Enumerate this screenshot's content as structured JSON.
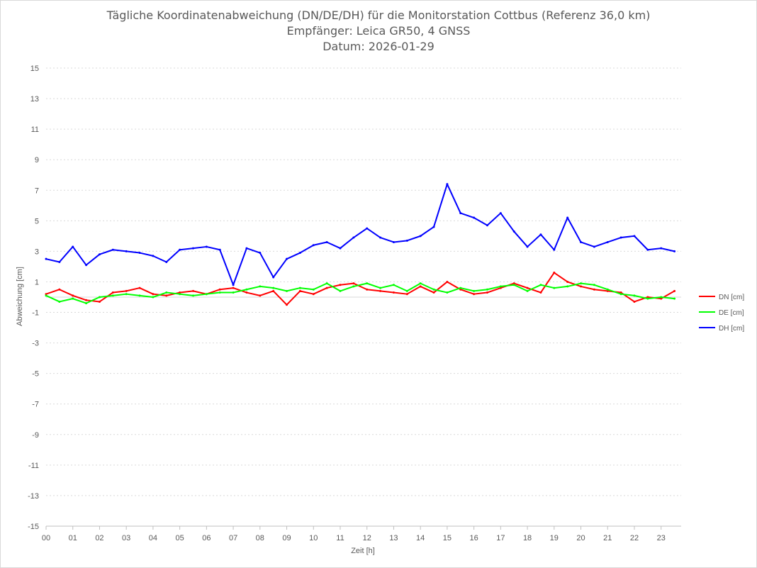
{
  "chart_data": {
    "type": "line",
    "title": "Tägliche Koordinatenabweichung (DN/DE/DH) für die Monitorstation Cottbus (Referenz 36,0 km)",
    "subtitle": "Empfänger: Leica GR50, 4 GNSS",
    "date_line": "Datum: 2026-01-29",
    "xlabel": "Zeit [h]",
    "ylabel": "Abweichung [cm]",
    "xlim": [
      0,
      23.75
    ],
    "ylim": [
      -15,
      15
    ],
    "x_ticks": [
      0,
      1,
      2,
      3,
      4,
      5,
      6,
      7,
      8,
      9,
      10,
      11,
      12,
      13,
      14,
      15,
      16,
      17,
      18,
      19,
      20,
      21,
      22,
      23
    ],
    "x_tick_labels": [
      "00",
      "01",
      "02",
      "03",
      "04",
      "05",
      "06",
      "07",
      "08",
      "09",
      "10",
      "11",
      "12",
      "13",
      "14",
      "15",
      "16",
      "17",
      "18",
      "19",
      "20",
      "21",
      "22",
      "23"
    ],
    "y_ticks": [
      -15,
      -13,
      -11,
      -9,
      -7,
      -5,
      -3,
      -1,
      1,
      3,
      5,
      7,
      9,
      11,
      13,
      15
    ],
    "y_tick_labels": [
      "-15",
      "-13",
      "-11",
      "-9",
      "-7",
      "-5",
      "-3",
      "-1",
      "1",
      "3",
      "5",
      "7",
      "9",
      "11",
      "13",
      "15"
    ],
    "grid": true,
    "legend_position": "right",
    "x": [
      0,
      0.5,
      1,
      1.5,
      2,
      2.5,
      3,
      3.5,
      4,
      4.5,
      5,
      5.5,
      6,
      6.5,
      7,
      7.5,
      8,
      8.5,
      9,
      9.5,
      10,
      10.5,
      11,
      11.5,
      12,
      12.5,
      13,
      13.5,
      14,
      14.5,
      15,
      15.5,
      16,
      16.5,
      17,
      17.5,
      18,
      18.5,
      19,
      19.5,
      20,
      20.5,
      21,
      21.5,
      22,
      22.5,
      23,
      23.5
    ],
    "series": [
      {
        "name": "DN [cm]",
        "color": "#ff0000",
        "values": [
          0.2,
          0.5,
          0.1,
          -0.2,
          -0.3,
          0.3,
          0.4,
          0.6,
          0.2,
          0.1,
          0.3,
          0.4,
          0.2,
          0.5,
          0.6,
          0.3,
          0.1,
          0.4,
          -0.5,
          0.4,
          0.2,
          0.6,
          0.8,
          0.9,
          0.5,
          0.4,
          0.3,
          0.2,
          0.7,
          0.3,
          1.0,
          0.5,
          0.2,
          0.3,
          0.6,
          0.9,
          0.6,
          0.3,
          1.6,
          1.0,
          0.7,
          0.5,
          0.4,
          0.3,
          -0.3,
          0.0,
          -0.1,
          0.4
        ]
      },
      {
        "name": "DE [cm]",
        "color": "#00ff00",
        "values": [
          0.1,
          -0.3,
          -0.1,
          -0.4,
          0.0,
          0.1,
          0.2,
          0.1,
          0.0,
          0.3,
          0.2,
          0.1,
          0.2,
          0.3,
          0.3,
          0.5,
          0.7,
          0.6,
          0.4,
          0.6,
          0.5,
          0.9,
          0.4,
          0.7,
          0.9,
          0.6,
          0.8,
          0.4,
          0.9,
          0.5,
          0.3,
          0.6,
          0.4,
          0.5,
          0.7,
          0.8,
          0.4,
          0.8,
          0.6,
          0.7,
          0.9,
          0.8,
          0.5,
          0.2,
          0.1,
          -0.1,
          0.0,
          -0.1
        ]
      },
      {
        "name": "DH [cm]",
        "color": "#0000ff",
        "values": [
          2.5,
          2.3,
          3.3,
          2.1,
          2.8,
          3.1,
          3.0,
          2.9,
          2.7,
          2.3,
          3.1,
          3.2,
          3.3,
          3.1,
          0.8,
          3.2,
          2.9,
          1.3,
          2.5,
          2.9,
          3.4,
          3.6,
          3.2,
          3.9,
          4.5,
          3.9,
          3.6,
          3.7,
          4.0,
          4.6,
          7.4,
          5.5,
          5.2,
          4.7,
          5.5,
          4.3,
          3.3,
          4.1,
          3.1,
          5.2,
          3.6,
          3.3,
          3.6,
          3.9,
          4.0,
          3.1,
          3.2,
          3.0
        ]
      }
    ]
  }
}
